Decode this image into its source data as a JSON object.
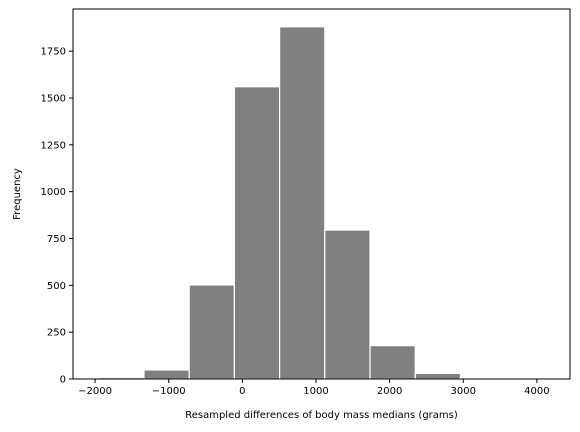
{
  "chart_data": {
    "type": "bar",
    "title": "",
    "xlabel": "Resampled differences of body mass medians (grams)",
    "ylabel": "Frequency",
    "xlim": [
      -2300,
      4450
    ],
    "ylim": [
      0,
      1975
    ],
    "bin_edges": [
      -1950,
      -1336,
      -722,
      -108,
      506,
      1120,
      1734,
      2348,
      2962,
      3576,
      4190
    ],
    "values": [
      8,
      48,
      502,
      1560,
      1880,
      795,
      178,
      30,
      3,
      1
    ],
    "x_ticks": [
      -2000,
      -1000,
      0,
      1000,
      2000,
      3000,
      4000
    ],
    "x_tick_labels": [
      "−2000",
      "−1000",
      "0",
      "1000",
      "2000",
      "3000",
      "4000"
    ],
    "y_ticks": [
      0,
      250,
      500,
      750,
      1000,
      1250,
      1500,
      1750
    ],
    "y_tick_labels": [
      "0",
      "250",
      "500",
      "750",
      "1000",
      "1250",
      "1500",
      "1750"
    ],
    "grid": false,
    "legend": "none",
    "bar_color": "#808080",
    "bar_edge_color": "#ffffff"
  }
}
